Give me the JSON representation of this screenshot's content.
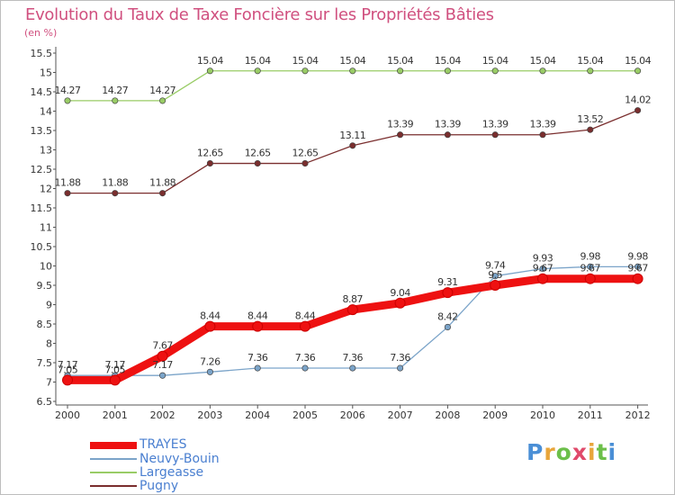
{
  "title": "Evolution du Taux de Taxe Foncière sur les Propriétés Bâties",
  "unit": "(en %)",
  "brand": "Proxiti",
  "colors": {
    "title": "#d0507f",
    "axis": "#555555",
    "tick_text": "#333333"
  },
  "chart_data": {
    "type": "line",
    "x": [
      "2000",
      "2001",
      "2002",
      "2003",
      "2004",
      "2005",
      "2006",
      "2007",
      "2008",
      "2009",
      "2010",
      "2011",
      "2012"
    ],
    "ylim": [
      6.5,
      15.5
    ],
    "yticks": [
      "6.5",
      "7",
      "7.5",
      "8",
      "8.5",
      "9",
      "9.5",
      "10",
      "10.5",
      "11",
      "11.5",
      "12",
      "12.5",
      "13",
      "13.5",
      "14",
      "14.5",
      "15",
      "15.5"
    ],
    "grid": false,
    "legend_position": "bottom-left",
    "series": [
      {
        "name": "TRAYES",
        "color": "#ee1111",
        "values": [
          7.05,
          7.05,
          7.67,
          8.44,
          8.44,
          8.44,
          8.87,
          9.04,
          9.31,
          9.5,
          9.67,
          9.67,
          9.67
        ],
        "labels": [
          "7.05",
          "7.05",
          "7.67",
          "8.44",
          "8.44",
          "8.44",
          "8.87",
          "9.04",
          "9.31",
          "9.5",
          "9.67",
          "9.67",
          "9.67"
        ]
      },
      {
        "name": "Neuvy-Bouin",
        "color": "#7ba4c9",
        "values": [
          7.17,
          7.17,
          7.17,
          7.26,
          7.36,
          7.36,
          7.36,
          7.36,
          8.42,
          9.74,
          9.93,
          9.98,
          9.98
        ],
        "labels": [
          "7.17",
          "7.17",
          "7.17",
          "7.26",
          "7.36",
          "7.36",
          "7.36",
          "7.36",
          "8.42",
          "9.74",
          "9.93",
          "9.98",
          "9.98"
        ]
      },
      {
        "name": "Largeasse",
        "color": "#99cc66",
        "values": [
          14.27,
          14.27,
          14.27,
          15.04,
          15.04,
          15.04,
          15.04,
          15.04,
          15.04,
          15.04,
          15.04,
          15.04,
          15.04
        ],
        "labels": [
          "14.27",
          "14.27",
          "14.27",
          "15.04",
          "15.04",
          "15.04",
          "15.04",
          "15.04",
          "15.04",
          "15.04",
          "15.04",
          "15.04",
          "15.04"
        ]
      },
      {
        "name": "Pugny",
        "color": "#7a2e2e",
        "values": [
          11.88,
          11.88,
          11.88,
          12.65,
          12.65,
          12.65,
          13.11,
          13.39,
          13.39,
          13.39,
          13.39,
          13.52,
          14.02
        ],
        "labels": [
          "11.88",
          "11.88",
          "11.88",
          "12.65",
          "12.65",
          "12.65",
          "13.11",
          "13.39",
          "13.39",
          "13.39",
          "13.39",
          "13.52",
          "14.02"
        ]
      }
    ]
  }
}
